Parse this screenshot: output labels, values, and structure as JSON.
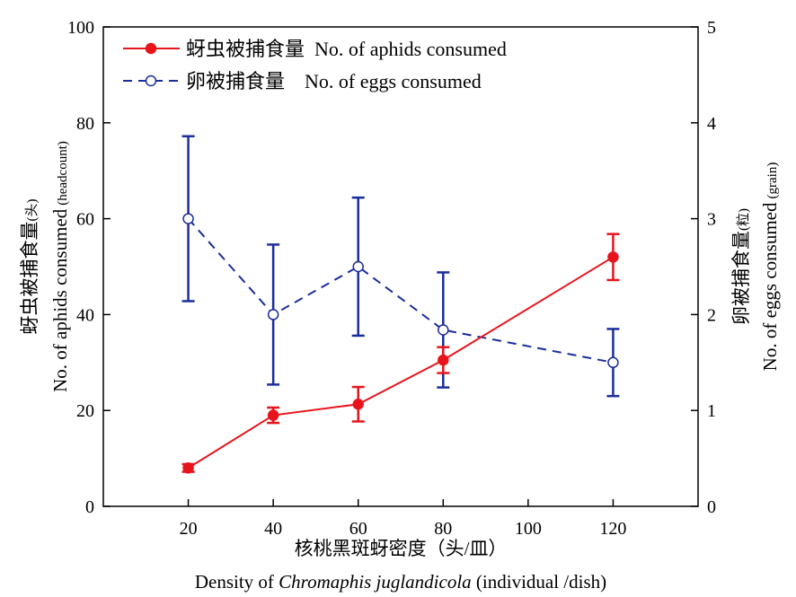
{
  "chart_data": {
    "type": "line",
    "title": "",
    "x": [
      20,
      40,
      60,
      80,
      120
    ],
    "xlim": [
      0,
      140
    ],
    "xticks": [
      20,
      40,
      60,
      80,
      100,
      120
    ],
    "xlabel_cn": "核桃黑斑蚜密度（头/皿）",
    "xlabel_en_prefix": "Density of ",
    "xlabel_en_species": "Chromaphis juglandicola",
    "xlabel_en_suffix": " (individual /dish)",
    "y_left": {
      "label_cn_main": "蚜虫被捕食量",
      "label_cn_unit": "(头)",
      "label_en_main": "No. of aphids consumed",
      "label_en_unit": "(headcount)",
      "lim": [
        0,
        100
      ],
      "ticks": [
        0,
        20,
        40,
        60,
        80,
        100
      ]
    },
    "y_right": {
      "label_cn_main": "卵被捕食量",
      "label_cn_unit": "(粒)",
      "label_en_main": "No. of eggs consumed",
      "label_en_unit": "(grain)",
      "lim": [
        0,
        5
      ],
      "ticks": [
        0,
        1,
        2,
        3,
        4,
        5
      ]
    },
    "series": [
      {
        "name": "蚜虫被捕食量  No. of aphids consumed",
        "axis": "left",
        "color": "#e8141c",
        "line_style": "solid",
        "marker": "filled-circle",
        "values": [
          8,
          19,
          21.3,
          30.5,
          52
        ],
        "errors": [
          0.8,
          1.6,
          3.6,
          2.7,
          4.8
        ]
      },
      {
        "name": "卵被捕食量    No. of eggs consumed",
        "axis": "right",
        "color": "#1a2d9c",
        "line_style": "dashed",
        "marker": "open-circle",
        "values": [
          3.0,
          2.0,
          2.5,
          1.84,
          1.5
        ],
        "errors": [
          0.86,
          0.73,
          0.72,
          0.6,
          0.35
        ]
      }
    ],
    "legend_position": "top-left",
    "grid": false
  }
}
